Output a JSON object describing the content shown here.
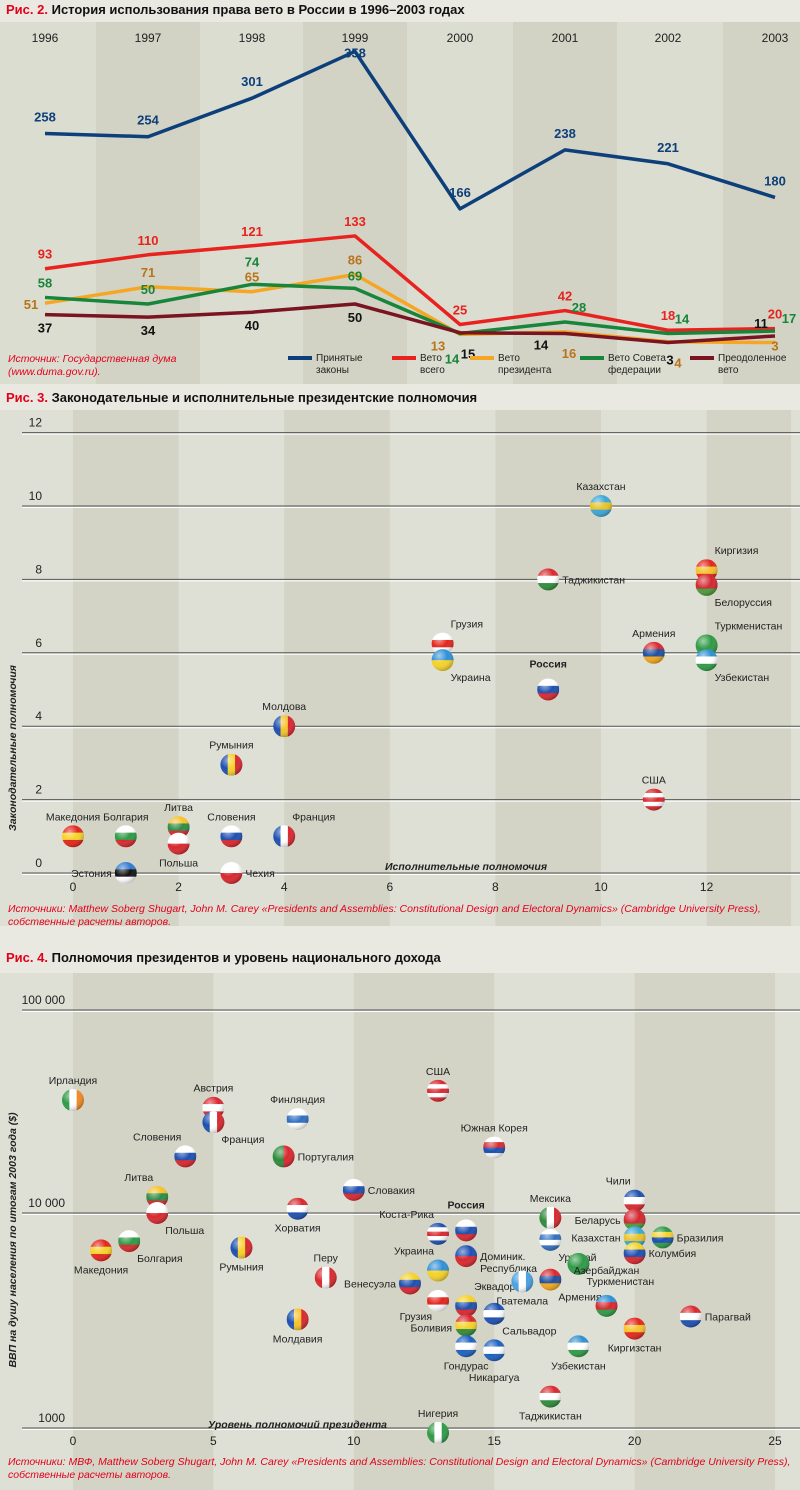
{
  "chart_data": [
    {
      "type": "line",
      "fig_label": "Рис. 2.",
      "title": "История использования права вето в России в 1996–2003 годах",
      "categories": [
        "1996",
        "1997",
        "1998",
        "1999",
        "2000",
        "2001",
        "2002",
        "2003"
      ],
      "series": [
        {
          "name": "Принятые законы",
          "color": "#0d3f7a",
          "values": [
            258,
            254,
            301,
            358,
            166,
            238,
            221,
            180
          ]
        },
        {
          "name": "Вето всего",
          "color": "#e8231f",
          "values": [
            93,
            110,
            121,
            133,
            25,
            42,
            18,
            20
          ]
        },
        {
          "name": "Вето президента",
          "color": "#f5a623",
          "label_color": "#b8741a",
          "values": [
            51,
            71,
            65,
            86,
            13,
            16,
            4,
            3
          ]
        },
        {
          "name": "Вето Совета федерации",
          "color": "#17853a",
          "values": [
            58,
            50,
            74,
            69,
            14,
            28,
            14,
            17
          ]
        },
        {
          "name": "Преодоленное вето",
          "color": "#7a1420",
          "label_color": "#111111",
          "values": [
            37,
            34,
            40,
            50,
            15,
            14,
            3,
            11
          ]
        }
      ],
      "legend_placement": "bottom-right",
      "grid": false,
      "source": "Источник: Государственная дума (www.duma.gov.ru)."
    },
    {
      "type": "scatter",
      "fig_label": "Рис. 3.",
      "title": "Законодательные и исполнительные президентские полномочия",
      "xlabel": "Исполнительные полномочия",
      "ylabel": "Законодательные полномочия",
      "xlim": [
        -1,
        13.5
      ],
      "ylim": [
        0,
        12
      ],
      "xticks": [
        0,
        2,
        4,
        6,
        8,
        10,
        12
      ],
      "yticks": [
        0,
        2,
        4,
        6,
        8,
        10,
        12
      ],
      "grid": true,
      "highlight": "Россия",
      "points": [
        {
          "name": "Казахстан",
          "x": 10,
          "y": 10,
          "flag": [
            "#3aa6d8",
            "#e8c32a",
            "#3aa6d8"
          ]
        },
        {
          "name": "Киргизия",
          "x": 12,
          "y": 8.25,
          "flag": [
            "#e3241b",
            "#f4c22b",
            "#e3241b"
          ]
        },
        {
          "name": "Белоруссия",
          "x": 12,
          "y": 7.85,
          "flag": [
            "#d22630",
            "#d22630",
            "#4a9a3a"
          ]
        },
        {
          "name": "Таджикистан",
          "x": 9,
          "y": 8,
          "flag": [
            "#d8272e",
            "#ffffff",
            "#2e8b3a"
          ]
        },
        {
          "name": "Грузия",
          "x": 7,
          "y": 6.25,
          "flag": [
            "#ffffff",
            "#e3241b",
            "#ffffff"
          ]
        },
        {
          "name": "Украина",
          "x": 7,
          "y": 5.8,
          "flag": [
            "#2f8fd6",
            "#f5d228"
          ]
        },
        {
          "name": "Армения",
          "x": 11,
          "y": 6,
          "flag": [
            "#d8272e",
            "#1f4fa0",
            "#f2a81d"
          ]
        },
        {
          "name": "Туркменистан",
          "x": 12,
          "y": 6.2,
          "flag": [
            "#2e9a45",
            "#2e9a45",
            "#2e9a45"
          ]
        },
        {
          "name": "Узбекистан",
          "x": 12,
          "y": 5.8,
          "flag": [
            "#2e8fd0",
            "#ffffff",
            "#2e9a45"
          ]
        },
        {
          "name": "Россия",
          "x": 9,
          "y": 5,
          "flag": [
            "#ffffff",
            "#1c4fb0",
            "#d8272e"
          ]
        },
        {
          "name": "Молдова",
          "x": 4,
          "y": 4,
          "flag": [
            "#1c4fb0",
            "#f5c22b",
            "#d8272e"
          ],
          "dir": "v"
        },
        {
          "name": "Румыния",
          "x": 3,
          "y": 2.95,
          "flag": [
            "#1c4fb0",
            "#f5d228",
            "#d8272e"
          ],
          "dir": "v"
        },
        {
          "name": "США",
          "x": 11,
          "y": 2,
          "flag": [
            "#d8272e",
            "#ffffff",
            "#d8272e",
            "#ffffff",
            "#d8272e"
          ]
        },
        {
          "name": "Македония",
          "x": 0,
          "y": 1,
          "flag": [
            "#e3241b",
            "#f5d228",
            "#e3241b"
          ]
        },
        {
          "name": "Болгария",
          "x": 1,
          "y": 1,
          "flag": [
            "#ffffff",
            "#2e9a45",
            "#d8272e"
          ]
        },
        {
          "name": "Литва",
          "x": 2,
          "y": 1.25,
          "flag": [
            "#f5c22b",
            "#2e8a45",
            "#d8272e"
          ]
        },
        {
          "name": "Польша",
          "x": 2,
          "y": 0.8,
          "flag": [
            "#ffffff",
            "#d8272e"
          ]
        },
        {
          "name": "Словения",
          "x": 3,
          "y": 1,
          "flag": [
            "#ffffff",
            "#1c4fb0",
            "#d8272e"
          ]
        },
        {
          "name": "Франция",
          "x": 4,
          "y": 1,
          "flag": [
            "#1c4fb0",
            "#ffffff",
            "#d8272e"
          ],
          "dir": "v"
        },
        {
          "name": "Эстония",
          "x": 1,
          "y": 0,
          "flag": [
            "#2f7ad0",
            "#111111",
            "#ffffff"
          ]
        },
        {
          "name": "Чехия",
          "x": 3,
          "y": 0,
          "flag": [
            "#ffffff",
            "#d8272e"
          ]
        }
      ],
      "source": "Источники: Matthew Soberg Shugart, John M. Carey «Presidents and Assemblies: Constitutional Design and Electoral Dynamics» (Cambridge University Press), собственные расчеты авторов."
    },
    {
      "type": "scatter",
      "fig_label": "Рис. 4.",
      "title": "Полномочия президентов и уровень национального дохода",
      "xlabel": "Уровень полномочий президента",
      "ylabel": "ВВП на душу населения по итогам 2003 года ($)",
      "xlim": [
        -1,
        26
      ],
      "ylim": [
        1000,
        100000
      ],
      "yscale": "log",
      "xticks": [
        0,
        5,
        10,
        15,
        20,
        25
      ],
      "yticks": [
        1000,
        10000,
        100000
      ],
      "ytick_labels": [
        "1000",
        "10 000",
        "100 000"
      ],
      "grid": true,
      "highlight": "Россия",
      "points": [
        {
          "name": "Ирландия",
          "x": 0,
          "y": 36000,
          "flag": [
            "#2e9a45",
            "#ffffff",
            "#f08a24"
          ],
          "dir": "v"
        },
        {
          "name": "Австрия",
          "x": 5,
          "y": 33000,
          "flag": [
            "#d8272e",
            "#ffffff",
            "#d8272e"
          ]
        },
        {
          "name": "Франция",
          "x": 5,
          "y": 28000,
          "flag": [
            "#1c4fb0",
            "#ffffff",
            "#d8272e"
          ],
          "dir": "v"
        },
        {
          "name": "Финляндия",
          "x": 8,
          "y": 29000,
          "flag": [
            "#ffffff",
            "#2f6fc0",
            "#ffffff"
          ]
        },
        {
          "name": "США",
          "x": 13,
          "y": 40000,
          "flag": [
            "#d8272e",
            "#ffffff",
            "#d8272e",
            "#ffffff",
            "#d8272e"
          ]
        },
        {
          "name": "Южная Корея",
          "x": 15,
          "y": 21000,
          "flag": [
            "#ffffff",
            "#d8272e",
            "#1c4fb0",
            "#ffffff"
          ]
        },
        {
          "name": "Словения",
          "x": 4,
          "y": 19000,
          "flag": [
            "#ffffff",
            "#1c4fb0",
            "#d8272e"
          ]
        },
        {
          "name": "Португалия",
          "x": 7.5,
          "y": 19000,
          "flag": [
            "#2e8a3a",
            "#d8272e"
          ],
          "dir": "v"
        },
        {
          "name": "Словакия",
          "x": 10,
          "y": 13000,
          "flag": [
            "#ffffff",
            "#1c4fb0",
            "#d8272e"
          ]
        },
        {
          "name": "Литва",
          "x": 3,
          "y": 12000,
          "flag": [
            "#f5c22b",
            "#2e8a45",
            "#d8272e"
          ]
        },
        {
          "name": "Польша",
          "x": 3,
          "y": 10000,
          "flag": [
            "#ffffff",
            "#d8272e"
          ]
        },
        {
          "name": "Хорватия",
          "x": 8,
          "y": 10500,
          "flag": [
            "#d8272e",
            "#ffffff",
            "#1c4fb0"
          ]
        },
        {
          "name": "Болгария",
          "x": 2,
          "y": 7400,
          "flag": [
            "#ffffff",
            "#2e9a45",
            "#d8272e"
          ]
        },
        {
          "name": "Македония",
          "x": 1,
          "y": 6700,
          "flag": [
            "#e3241b",
            "#f5d228",
            "#e3241b"
          ]
        },
        {
          "name": "Румыния",
          "x": 6,
          "y": 6900,
          "flag": [
            "#1c4fb0",
            "#f5d228",
            "#d8272e"
          ],
          "dir": "v"
        },
        {
          "name": "Перу",
          "x": 9,
          "y": 5000,
          "flag": [
            "#d8272e",
            "#ffffff",
            "#d8272e"
          ],
          "dir": "v"
        },
        {
          "name": "Молдавия",
          "x": 8,
          "y": 3200,
          "flag": [
            "#1c4fb0",
            "#f5c22b",
            "#d8272e"
          ],
          "dir": "v"
        },
        {
          "name": "Россия",
          "x": 14,
          "y": 8300,
          "flag": [
            "#ffffff",
            "#1c4fb0",
            "#d8272e"
          ]
        },
        {
          "name": "Коста-Рика",
          "x": 13,
          "y": 8000,
          "flag": [
            "#1c4fb0",
            "#ffffff",
            "#d8272e",
            "#ffffff",
            "#1c4fb0"
          ]
        },
        {
          "name": "Доминик. Республика",
          "x": 14,
          "y": 6300,
          "flag": [
            "#1c4fb0",
            "#d8272e"
          ]
        },
        {
          "name": "Украина",
          "x": 13,
          "y": 5400,
          "flag": [
            "#2f8fd6",
            "#f5d228"
          ]
        },
        {
          "name": "Венесуэла",
          "x": 12,
          "y": 4700,
          "flag": [
            "#f5d228",
            "#1c4fb0",
            "#d8272e"
          ]
        },
        {
          "name": "Грузия",
          "x": 13,
          "y": 3900,
          "flag": [
            "#ffffff",
            "#e3241b",
            "#ffffff"
          ]
        },
        {
          "name": "Эквадор",
          "x": 14,
          "y": 3700,
          "flag": [
            "#f5d228",
            "#1c4fb0",
            "#d8272e"
          ]
        },
        {
          "name": "Боливия",
          "x": 14,
          "y": 3000,
          "flag": [
            "#d8272e",
            "#f5d228",
            "#2e8a3a"
          ]
        },
        {
          "name": "Гондурас",
          "x": 14,
          "y": 2400,
          "flag": [
            "#1c5fc0",
            "#ffffff",
            "#1c5fc0"
          ]
        },
        {
          "name": "Сальвадор",
          "x": 15,
          "y": 3400,
          "flag": [
            "#1c4fb0",
            "#ffffff",
            "#1c4fb0"
          ]
        },
        {
          "name": "Никарагуа",
          "x": 15,
          "y": 2300,
          "flag": [
            "#1c5fc0",
            "#ffffff",
            "#1c5fc0"
          ]
        },
        {
          "name": "Гватемала",
          "x": 16,
          "y": 4800,
          "flag": [
            "#4aa0e0",
            "#ffffff",
            "#4aa0e0"
          ],
          "dir": "v"
        },
        {
          "name": "Армения",
          "x": 17,
          "y": 4900,
          "flag": [
            "#d8272e",
            "#1f4fa0",
            "#f2a81d"
          ]
        },
        {
          "name": "Мексика",
          "x": 17,
          "y": 9500,
          "flag": [
            "#2e8a3a",
            "#ffffff",
            "#d8272e"
          ],
          "dir": "v"
        },
        {
          "name": "Уругвай",
          "x": 17,
          "y": 7500,
          "flag": [
            "#ffffff",
            "#2f6fc0",
            "#ffffff",
            "#2f6fc0"
          ]
        },
        {
          "name": "Туркменистан",
          "x": 18,
          "y": 5800,
          "flag": [
            "#2e9a45",
            "#2e9a45",
            "#2e9a45"
          ]
        },
        {
          "name": "Чили",
          "x": 20,
          "y": 11500,
          "flag": [
            "#1c4fb0",
            "#ffffff",
            "#d8272e"
          ]
        },
        {
          "name": "Беларусь",
          "x": 20,
          "y": 9300,
          "flag": [
            "#d22630",
            "#d22630",
            "#4a9a3a"
          ]
        },
        {
          "name": "Казахстан",
          "x": 20,
          "y": 7700,
          "flag": [
            "#3aa6d8",
            "#e8c32a",
            "#3aa6d8"
          ]
        },
        {
          "name": "Колумбия",
          "x": 20,
          "y": 6500,
          "flag": [
            "#f5d228",
            "#1c4fb0",
            "#d8272e"
          ]
        },
        {
          "name": "Бразилия",
          "x": 21,
          "y": 7700,
          "flag": [
            "#2e9a45",
            "#f5d228",
            "#1c4fb0",
            "#2e9a45"
          ]
        },
        {
          "name": "Азербайджан",
          "x": 19,
          "y": 3700,
          "flag": [
            "#2f8fd6",
            "#d8272e",
            "#2e9a45"
          ]
        },
        {
          "name": "Парагвай",
          "x": 22,
          "y": 3300,
          "flag": [
            "#d8272e",
            "#ffffff",
            "#1c4fb0"
          ]
        },
        {
          "name": "Киргизстан",
          "x": 20,
          "y": 2900,
          "flag": [
            "#e3241b",
            "#f4c22b",
            "#e3241b"
          ]
        },
        {
          "name": "Узбекистан",
          "x": 18,
          "y": 2400,
          "flag": [
            "#2e8fd0",
            "#ffffff",
            "#2e9a45"
          ]
        },
        {
          "name": "Таджикистан",
          "x": 17,
          "y": 1400,
          "flag": [
            "#d8272e",
            "#ffffff",
            "#2e8b3a"
          ]
        },
        {
          "name": "Нигерия",
          "x": 13,
          "y": 950,
          "flag": [
            "#2e9a45",
            "#ffffff",
            "#2e9a45"
          ],
          "dir": "v"
        }
      ],
      "source": "Источники: МВФ, Matthew Soberg Shugart, John M. Carey «Presidents and Assemblies: Constitutional Design and Electoral Dynamics» (Cambridge University Press), собственные расчеты авторов."
    }
  ]
}
